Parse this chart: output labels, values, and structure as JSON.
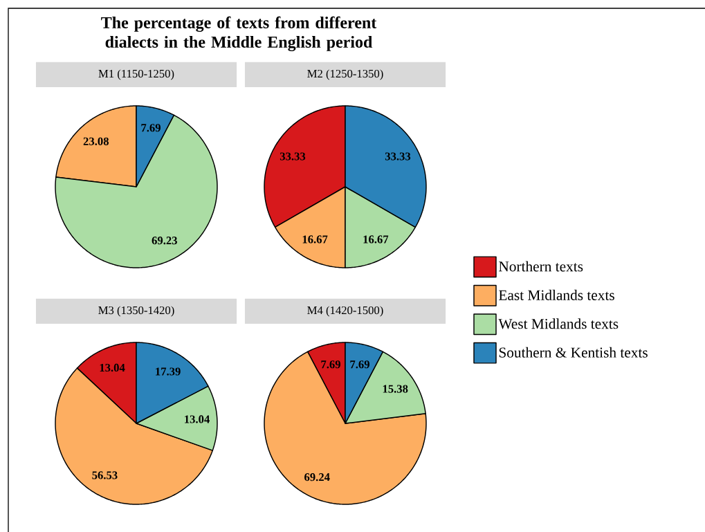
{
  "chart_data": [
    {
      "type": "pie",
      "title": "The percentage of texts from different dialects in the Middle English period",
      "subtitle": "M1 (1150-1250)",
      "categories": [
        null,
        null,
        null
      ],
      "values": [
        23.08,
        69.23,
        7.69
      ],
      "colors": [
        "#fdae61",
        "#abdda4",
        "#2b83ba"
      ],
      "data_labels": true
    },
    {
      "type": "pie",
      "subtitle": "M2 (1250-1350)",
      "categories": [
        "Northern texts",
        "East Midlands texts",
        "West Midlands texts",
        "Southern & Kentish texts"
      ],
      "values": [
        33.33,
        16.67,
        16.67,
        33.33
      ],
      "colors": [
        "#d7191c",
        "#fdae61",
        "#abdda4",
        "#2b83ba"
      ],
      "data_labels": true,
      "legend": "right"
    },
    {
      "type": "pie",
      "subtitle": "M3 (1350-1420)",
      "categories": [
        null,
        null,
        null,
        null
      ],
      "values": [
        13.04,
        56.53,
        13.04,
        17.39
      ],
      "colors": [
        "#d7191c",
        "#fdae61",
        "#abdda4",
        "#2b83ba"
      ],
      "data_labels": true
    },
    {
      "type": "pie",
      "subtitle": "M4 (1420-1500)",
      "categories": [
        null,
        null,
        null,
        null
      ],
      "values": [
        7.69,
        69.24,
        15.38,
        7.69
      ],
      "colors": [
        "#d7191c",
        "#fdae61",
        "#abdda4",
        "#2b83ba"
      ],
      "data_labels": true
    }
  ]
}
